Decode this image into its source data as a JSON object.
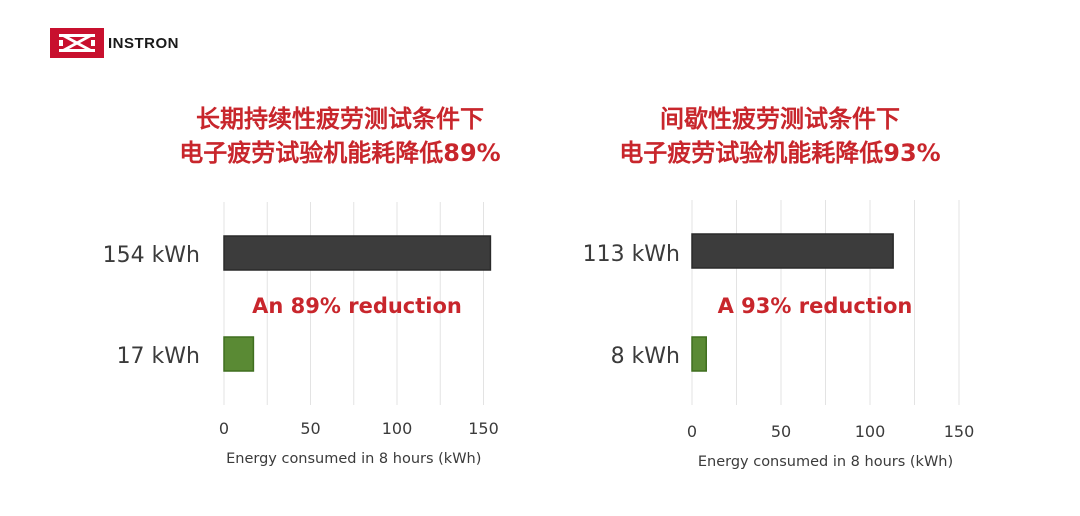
{
  "logo": {
    "text": "INSTRON",
    "icon": "instron-logo-icon",
    "color": "#c8102e"
  },
  "colors": {
    "title": "#c8262c",
    "high_bar": "#3c3c3c",
    "low_bar": "#5a8a34",
    "grid": "#e3e3e3",
    "text": "#3b3b3b"
  },
  "chart_data": [
    {
      "type": "bar",
      "orientation": "horizontal",
      "title": [
        "长期持续性疲劳测试条件下",
        "电子疲劳试验机能耗降低89%"
      ],
      "categories": [
        "154 kWh",
        "17 kWh"
      ],
      "values": [
        154,
        17
      ],
      "xlabel": "Energy consumed in 8 hours (kWh)",
      "xlim": [
        0,
        150
      ],
      "xticks": [
        0,
        50,
        100,
        150
      ],
      "annotation": "An 89% reduction",
      "grid": true
    },
    {
      "type": "bar",
      "orientation": "horizontal",
      "title": [
        "间歇性疲劳测试条件下",
        "电子疲劳试验机能耗降低93%"
      ],
      "categories": [
        "113 kWh",
        "8 kWh"
      ],
      "values": [
        113,
        8
      ],
      "xlabel": "Energy consumed in 8 hours (kWh)",
      "xlim": [
        0,
        150
      ],
      "xticks": [
        0,
        50,
        100,
        150
      ],
      "annotation": "A 93% reduction",
      "grid": true
    }
  ]
}
